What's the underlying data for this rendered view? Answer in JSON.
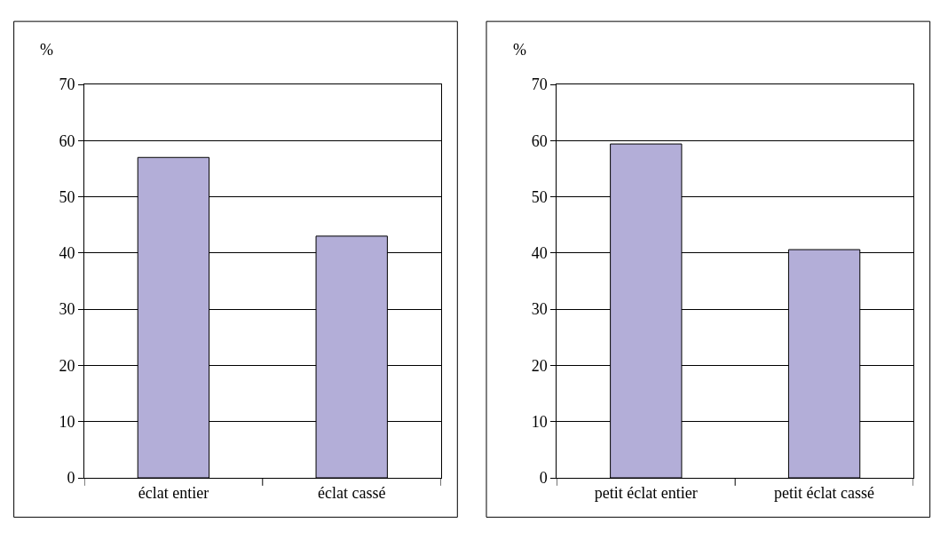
{
  "chart_data": [
    {
      "type": "bar",
      "ylabel": "%",
      "categories": [
        "éclat entier",
        "éclat cassé"
      ],
      "values": [
        57,
        43
      ],
      "color": "#b3aed8",
      "ylim": [
        0,
        70
      ],
      "yticks": [
        0,
        10,
        20,
        30,
        40,
        50,
        60,
        70
      ],
      "grid": "y"
    },
    {
      "type": "bar",
      "ylabel": "%",
      "categories": [
        "petit éclat entier",
        "petit éclat cassé"
      ],
      "values": [
        59.4,
        40.6
      ],
      "color": "#b3aed8",
      "ylim": [
        0,
        70
      ],
      "yticks": [
        0,
        10,
        20,
        30,
        40,
        50,
        60,
        70
      ],
      "grid": "y"
    }
  ]
}
